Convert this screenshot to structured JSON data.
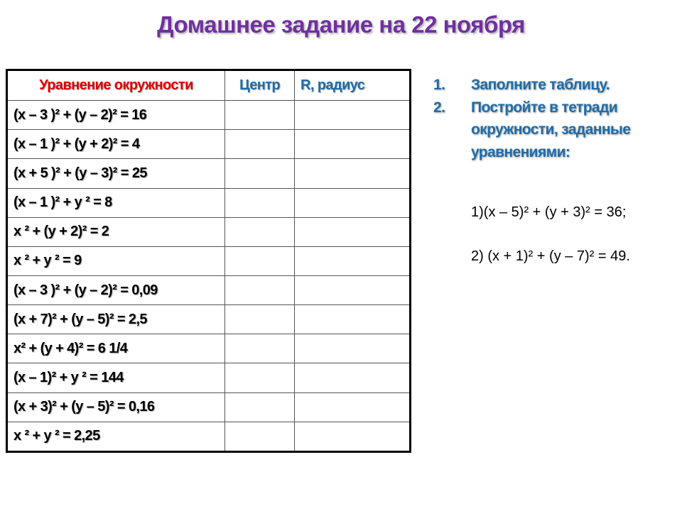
{
  "title": "Домашнее задание на 22 ноября",
  "table": {
    "headers": [
      "Уравнение окружности",
      "Центр",
      "R, радиус"
    ],
    "rows": [
      "(x – 3 )² + (y – 2)² = 16",
      "(x – 1 )² + (y + 2)² = 4",
      "(x + 5 )² + (y – 3)² = 25",
      "(x – 1 )² + y ² = 8",
      "x ² + (y + 2)² = 2",
      "x ² + y ² = 9",
      "(x – 3 )² + (y – 2)² = 0,09",
      "(x + 7)² + (y – 5)² = 2,5",
      "x² + (y + 4)² = 6   1/4",
      "(x – 1)² + y ² = 144",
      "(x + 3)² + (y – 5)² = 0,16",
      "x ² + y ² = 2,25"
    ]
  },
  "tasks": [
    {
      "num": "1.",
      "text": "Заполните таблицу."
    },
    {
      "num": "2.",
      "text": "Постройте в тетради окружности, заданные уравнениями:"
    }
  ],
  "equations": [
    "1)(x – 5)² + (y + 3)² = 36;",
    "2) (x + 1)² + (y – 7)² = 49."
  ],
  "colors": {
    "title": "#7030a0",
    "header_equation": "#e00000",
    "header_blue": "#1f6ca8"
  }
}
